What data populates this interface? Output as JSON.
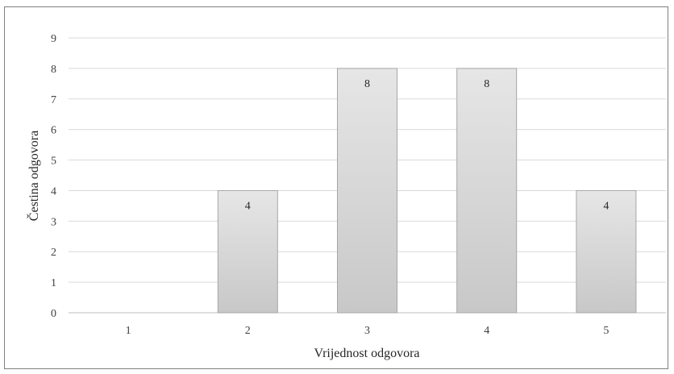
{
  "chart_data": {
    "type": "bar",
    "categories": [
      "1",
      "2",
      "3",
      "4",
      "5"
    ],
    "values": [
      0,
      4,
      8,
      8,
      4
    ],
    "data_labels": [
      "",
      "4",
      "8",
      "8",
      "4"
    ],
    "title": "",
    "xlabel": "Vrijednost odgovora",
    "ylabel": "Čestina odgovora",
    "ylim": [
      0,
      9
    ],
    "yticks": [
      "0",
      "1",
      "2",
      "3",
      "4",
      "5",
      "6",
      "7",
      "8",
      "9"
    ],
    "grid": true,
    "legend": "none",
    "colors": {
      "bar_top": "#e6e6e6",
      "bar_bottom": "#c8c8c8",
      "bar_edge": "#a6a6a6",
      "grid": "#d9d9d9"
    }
  }
}
